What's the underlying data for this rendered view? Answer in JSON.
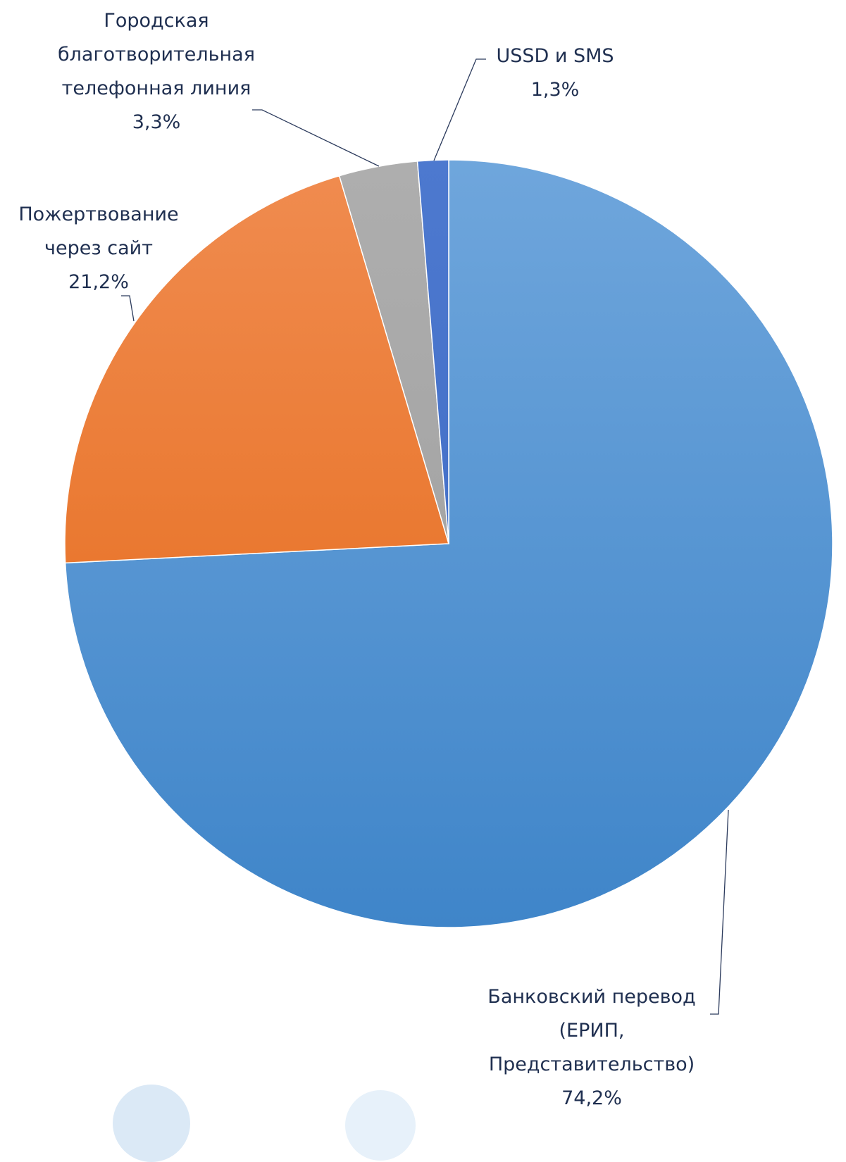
{
  "chart_data": {
    "type": "pie",
    "title": "",
    "slices": [
      {
        "label_lines": [
          "Банковский перевод",
          "(ЕРИП,",
          "Представительство)"
        ],
        "value": 74.2,
        "value_label": "74,2%",
        "color_top": "#6fa6dc",
        "color_bottom": "#3f85c9"
      },
      {
        "label_lines": [
          "Пожертвование",
          "через сайт"
        ],
        "value": 21.2,
        "value_label": "21,2%",
        "color_top": "#f08c50",
        "color_bottom": "#e46613"
      },
      {
        "label_lines": [
          "Городская",
          "благотворительная",
          "телефонная линия"
        ],
        "value": 3.3,
        "value_label": "3,3%",
        "color_top": "#aeaeae",
        "color_bottom": "#9c9c9c"
      },
      {
        "label_lines": [
          "USSD и SMS"
        ],
        "value": 1.3,
        "value_label": "1,3%",
        "color_top": "#4d79cf",
        "color_bottom": "#3c68c2"
      }
    ],
    "start_angle": "12 o'clock",
    "direction": "clockwise",
    "legend": "none",
    "label_color": "#1f2f50",
    "leader_line_color": "#2b3a5c"
  }
}
